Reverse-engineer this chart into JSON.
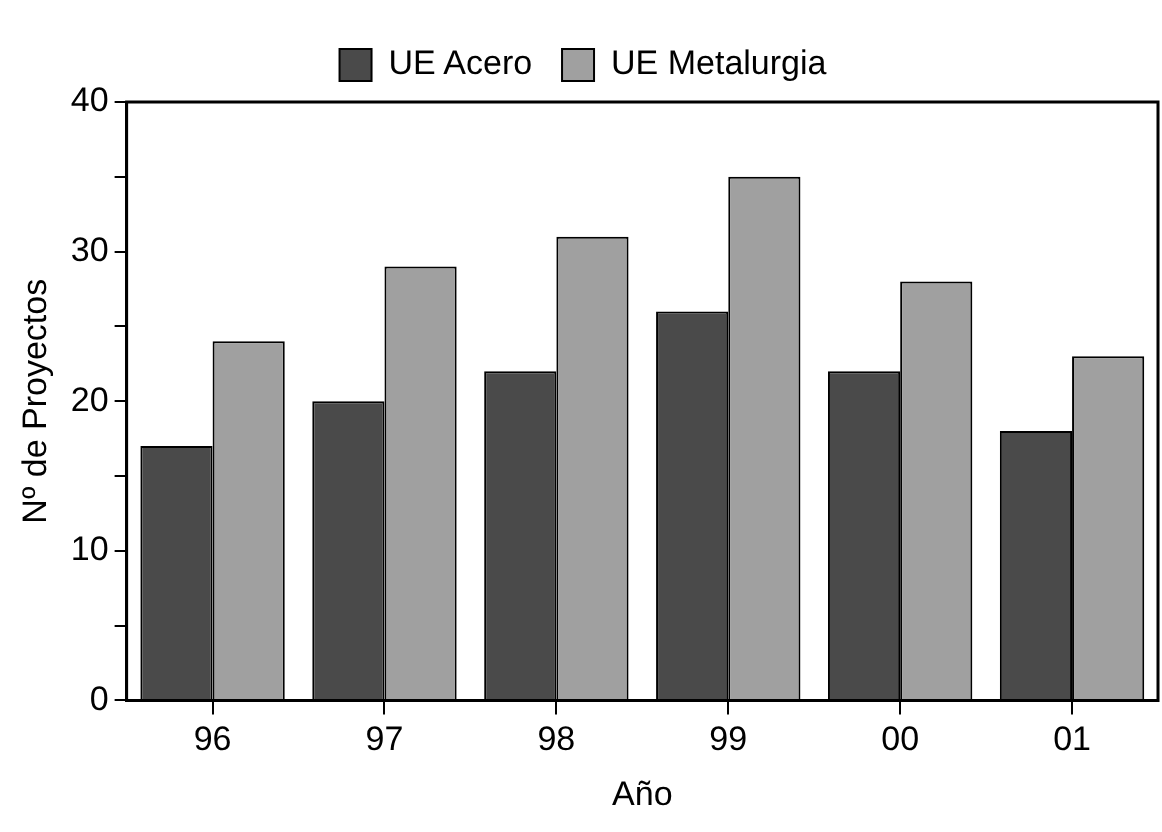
{
  "chart_data": {
    "type": "bar",
    "xlabel": "Año",
    "ylabel": "Nº de Proyectos",
    "categories": [
      "96",
      "97",
      "98",
      "99",
      "00",
      "01"
    ],
    "series": [
      {
        "name": "UE Acero",
        "color": "#4a4a4a",
        "values": [
          17,
          20,
          22,
          26,
          22,
          18
        ]
      },
      {
        "name": "UE Metalurgia",
        "color": "#a0a0a0",
        "values": [
          24,
          29,
          31,
          35,
          28,
          23
        ]
      }
    ],
    "ylim": [
      0,
      40
    ],
    "yticks": [
      0,
      {
        "value": 5,
        "label": null
      },
      10,
      {
        "value": 15,
        "label": null
      },
      20,
      {
        "value": 25,
        "label": null
      },
      30,
      {
        "value": 35,
        "label": null
      },
      40
    ],
    "grid": false,
    "legend": "top"
  }
}
